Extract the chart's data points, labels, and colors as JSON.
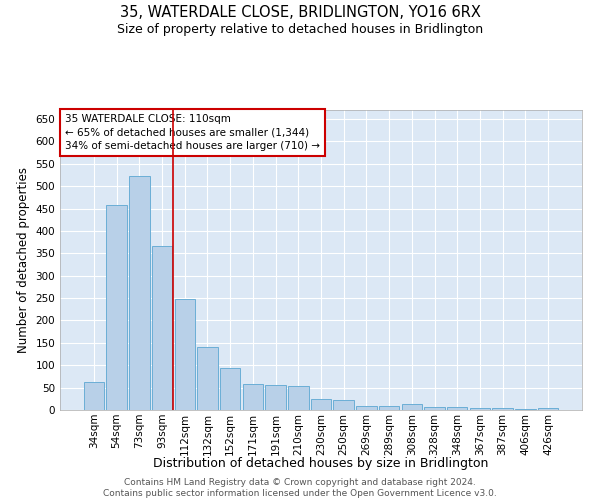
{
  "title": "35, WATERDALE CLOSE, BRIDLINGTON, YO16 6RX",
  "subtitle": "Size of property relative to detached houses in Bridlington",
  "xlabel": "Distribution of detached houses by size in Bridlington",
  "ylabel": "Number of detached properties",
  "categories": [
    "34sqm",
    "54sqm",
    "73sqm",
    "93sqm",
    "112sqm",
    "132sqm",
    "152sqm",
    "171sqm",
    "191sqm",
    "210sqm",
    "230sqm",
    "250sqm",
    "269sqm",
    "289sqm",
    "308sqm",
    "328sqm",
    "348sqm",
    "367sqm",
    "387sqm",
    "406sqm",
    "426sqm"
  ],
  "values": [
    62,
    457,
    523,
    367,
    248,
    140,
    93,
    59,
    55,
    53,
    25,
    23,
    10,
    10,
    13,
    7,
    7,
    5,
    5,
    2,
    5
  ],
  "bar_color": "#b8d0e8",
  "bar_edge_color": "#6baed6",
  "background_color": "#dce8f5",
  "annotation_text": "35 WATERDALE CLOSE: 110sqm\n← 65% of detached houses are smaller (1,344)\n34% of semi-detached houses are larger (710) →",
  "annotation_box_color": "#ffffff",
  "annotation_box_edge_color": "#cc0000",
  "vline_x_index": 3.5,
  "vline_color": "#cc0000",
  "ylim": [
    0,
    670
  ],
  "yticks": [
    0,
    50,
    100,
    150,
    200,
    250,
    300,
    350,
    400,
    450,
    500,
    550,
    600,
    650
  ],
  "footer_text": "Contains HM Land Registry data © Crown copyright and database right 2024.\nContains public sector information licensed under the Open Government Licence v3.0.",
  "title_fontsize": 10.5,
  "subtitle_fontsize": 9,
  "xlabel_fontsize": 9,
  "ylabel_fontsize": 8.5,
  "tick_fontsize": 7.5,
  "footer_fontsize": 6.5
}
